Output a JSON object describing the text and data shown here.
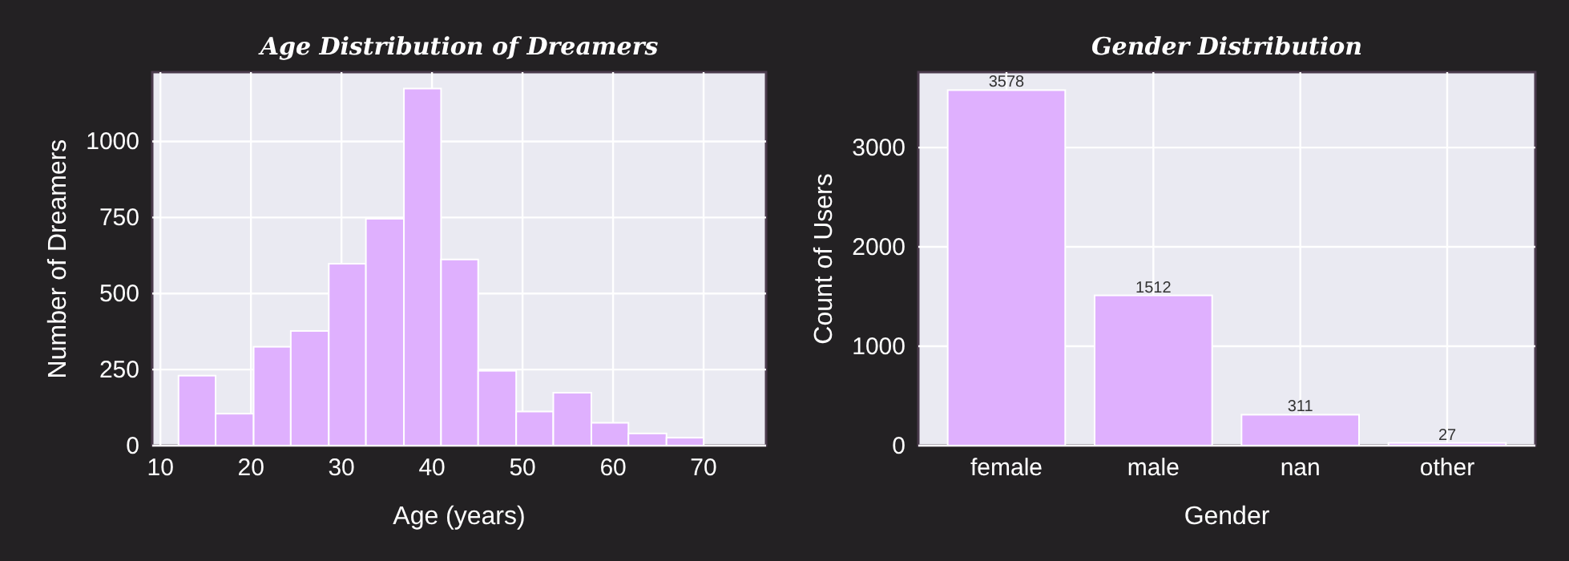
{
  "chart_data": [
    {
      "type": "histogram",
      "title": "Age Distribution of Dreamers",
      "xlabel": "Age (years)",
      "ylabel": "Number of Dreamers",
      "bins": [
        12,
        16.1,
        20.3,
        24.4,
        28.6,
        32.7,
        36.9,
        41,
        45.1,
        49.3,
        53.4,
        57.6,
        61.7,
        65.9,
        70
      ],
      "values": [
        230,
        105,
        325,
        377,
        598,
        746,
        1174,
        612,
        246,
        112,
        174,
        75,
        40,
        26
      ],
      "color": "#dfb0fe",
      "xlim": [
        9.1,
        76.9
      ],
      "xticks": [
        10,
        20,
        30,
        40,
        50,
        60,
        70
      ],
      "ylim": [
        0,
        1228
      ],
      "yticks": [
        0,
        250,
        500,
        750,
        1000
      ],
      "grid": true
    },
    {
      "type": "bar",
      "title": "Gender Distribution",
      "xlabel": "Gender",
      "ylabel": "Count of Users",
      "categories": [
        "female",
        "male",
        "nan",
        "other"
      ],
      "values": [
        3578,
        1512,
        311,
        27
      ],
      "color": "#dfb0fe",
      "ylim": [
        0,
        3759
      ],
      "yticks": [
        0,
        1000,
        2000,
        3000
      ],
      "grid": true,
      "data_labels": true
    }
  ]
}
